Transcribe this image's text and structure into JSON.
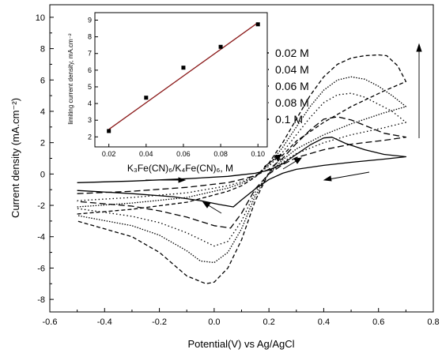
{
  "chart_data": [
    {
      "type": "line",
      "xlabel": "Potential(V) vs Ag/AgCl",
      "ylabel": "Current density (mA.cm⁻²)",
      "xlim": [
        -0.6,
        0.8
      ],
      "ylim": [
        -8.8,
        10.8
      ],
      "xticks": [
        "-0.6",
        "-0.4",
        "-0.2",
        "0.0",
        "0.2",
        "0.4",
        "0.6",
        "0.8"
      ],
      "yticks": [
        "-8",
        "-6",
        "-4",
        "-2",
        "0",
        "2",
        "4",
        "6",
        "8",
        "10"
      ],
      "legend_position": "right, inside plot",
      "series": [
        {
          "name": "0.02 M",
          "dash": "solid",
          "x": [
            -0.5,
            -0.3,
            -0.1,
            0.05,
            0.1,
            0.15,
            0.2,
            0.25,
            0.3,
            0.35,
            0.4,
            0.43,
            0.48,
            0.55,
            0.62,
            0.7,
            0.62,
            0.5,
            0.4,
            0.3,
            0.25,
            0.2,
            0.15,
            0.1,
            0.07,
            0.02,
            -0.05,
            -0.15,
            -0.3,
            -0.5
          ],
          "y": [
            -0.55,
            -0.45,
            -0.3,
            -0.15,
            -0.05,
            0.05,
            0.25,
            0.65,
            1.25,
            1.85,
            2.3,
            2.35,
            1.95,
            1.55,
            1.25,
            1.1,
            0.95,
            0.75,
            0.55,
            0.3,
            0.05,
            -0.35,
            -0.95,
            -1.65,
            -2.1,
            -1.95,
            -1.7,
            -1.45,
            -1.25,
            -1.05
          ]
        },
        {
          "name": "0.04 M",
          "dash": "long-dash",
          "x": [
            -0.5,
            -0.3,
            -0.1,
            0.05,
            0.1,
            0.15,
            0.2,
            0.25,
            0.3,
            0.35,
            0.4,
            0.45,
            0.5,
            0.55,
            0.62,
            0.7,
            0.62,
            0.5,
            0.4,
            0.3,
            0.25,
            0.2,
            0.15,
            0.1,
            0.06,
            0.0,
            -0.1,
            -0.2,
            -0.3,
            -0.5
          ],
          "y": [
            -1.25,
            -1.1,
            -0.85,
            -0.55,
            -0.35,
            -0.1,
            0.3,
            1.0,
            1.95,
            2.8,
            3.5,
            3.65,
            3.45,
            3.1,
            2.6,
            2.35,
            2.15,
            1.9,
            1.55,
            1.05,
            0.6,
            0.0,
            -0.95,
            -2.5,
            -3.45,
            -3.3,
            -2.75,
            -2.35,
            -2.05,
            -1.75
          ]
        },
        {
          "name": "0.06 M",
          "dash": "dot",
          "x": [
            -0.5,
            -0.3,
            -0.1,
            0.05,
            0.1,
            0.15,
            0.2,
            0.25,
            0.3,
            0.35,
            0.4,
            0.45,
            0.5,
            0.55,
            0.6,
            0.65,
            0.7,
            0.62,
            0.5,
            0.4,
            0.3,
            0.25,
            0.2,
            0.15,
            0.1,
            0.05,
            0.0,
            -0.1,
            -0.2,
            -0.3,
            -0.5
          ],
          "y": [
            -1.7,
            -1.5,
            -1.2,
            -0.75,
            -0.5,
            -0.1,
            0.5,
            1.4,
            2.5,
            3.6,
            4.55,
            5.05,
            5.15,
            4.9,
            4.45,
            4.0,
            3.3,
            2.95,
            2.5,
            2.0,
            1.3,
            0.75,
            0.05,
            -1.15,
            -3.0,
            -4.3,
            -4.6,
            -3.75,
            -3.1,
            -2.7,
            -2.2
          ]
        },
        {
          "name": "0.08 M",
          "dash": "dot-dense",
          "x": [
            -0.5,
            -0.3,
            -0.1,
            0.05,
            0.1,
            0.15,
            0.2,
            0.25,
            0.3,
            0.35,
            0.4,
            0.45,
            0.5,
            0.55,
            0.6,
            0.65,
            0.7,
            0.62,
            0.5,
            0.4,
            0.3,
            0.25,
            0.2,
            0.15,
            0.1,
            0.05,
            0.0,
            -0.05,
            -0.1,
            -0.2,
            -0.3,
            -0.5
          ],
          "y": [
            -2.1,
            -1.85,
            -1.5,
            -0.9,
            -0.6,
            -0.15,
            0.6,
            1.7,
            3.0,
            4.3,
            5.35,
            6.0,
            6.2,
            6.05,
            5.6,
            5.0,
            4.3,
            3.9,
            3.2,
            2.5,
            1.6,
            0.9,
            0.05,
            -1.4,
            -3.5,
            -5.0,
            -5.65,
            -5.55,
            -4.9,
            -3.9,
            -3.3,
            -2.65
          ]
        },
        {
          "name": "0.1 M",
          "dash": "dash",
          "x": [
            -0.5,
            -0.3,
            -0.1,
            0.05,
            0.1,
            0.15,
            0.2,
            0.25,
            0.3,
            0.35,
            0.4,
            0.45,
            0.5,
            0.55,
            0.6,
            0.63,
            0.67,
            0.7,
            0.62,
            0.5,
            0.4,
            0.3,
            0.25,
            0.2,
            0.15,
            0.1,
            0.05,
            0.0,
            -0.03,
            -0.1,
            -0.2,
            -0.3,
            -0.5
          ],
          "y": [
            -2.55,
            -2.25,
            -1.8,
            -1.1,
            -0.75,
            -0.2,
            0.7,
            2.0,
            3.5,
            5.0,
            6.2,
            7.0,
            7.4,
            7.55,
            7.6,
            7.55,
            6.9,
            5.9,
            5.3,
            4.3,
            3.3,
            2.1,
            1.2,
            0.1,
            -1.7,
            -4.2,
            -6.0,
            -6.9,
            -7.0,
            -6.5,
            -5.0,
            -4.0,
            -3.0
          ]
        }
      ],
      "annotations": [
        "scan-direction arrows"
      ]
    },
    {
      "type": "scatter",
      "xlabel": "K₃Fe(CN)₆/K₄Fe(CN)₆, M",
      "ylabel": "limiting current density, mA.cm⁻²",
      "xlim": [
        0.0125,
        0.105
      ],
      "ylim": [
        1.4,
        9.45
      ],
      "xticks": [
        "0.02",
        "0.04",
        "0.06",
        "0.08",
        "0.10"
      ],
      "yticks": [
        "2",
        "3",
        "4",
        "5",
        "6",
        "7",
        "8",
        "9"
      ],
      "points": {
        "x": [
          0.02,
          0.04,
          0.06,
          0.08,
          0.1
        ],
        "y": [
          2.35,
          4.35,
          6.15,
          7.4,
          8.75
        ]
      },
      "fit_line": {
        "x": [
          0.02,
          0.1
        ],
        "y": [
          2.45,
          8.85
        ],
        "color": "#8b1a1a"
      }
    }
  ]
}
